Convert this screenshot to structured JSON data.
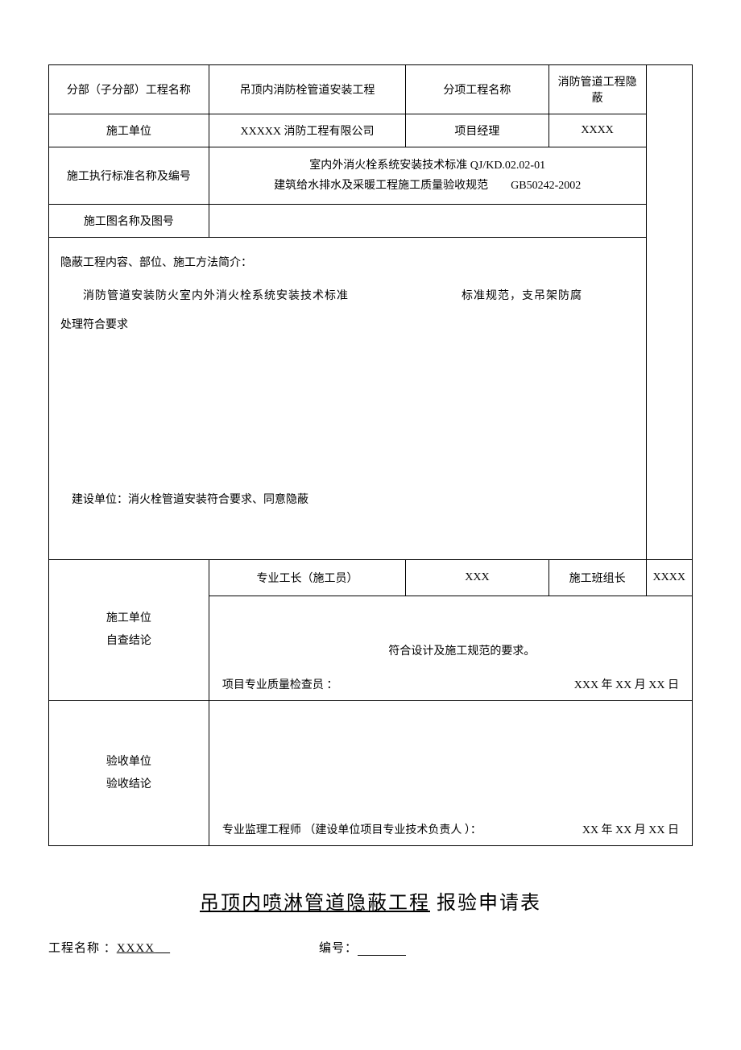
{
  "header": {
    "r1c1": "分部（子分部）工程名称",
    "r1c2": "吊顶内消防栓管道安装工程",
    "r1c3": "分项工程名称",
    "r1c4": "消防管道工程隐蔽",
    "r2c1": "施工单位",
    "r2c2": "XXXXX 消防工程有限公司",
    "r2c3": "项目经理",
    "r2c4": "XXXX",
    "r3c1": "施工执行标准名称及编号",
    "r3c2_line1": "室内外消火栓系统安装技术标准 QJ/KD.02.02-01",
    "r3c2_line2a": "建筑给水排水及采暖工程施工质量验收规范",
    "r3c2_line2b": "GB50242-2002",
    "r4c1": "施工图名称及图号"
  },
  "content": {
    "intro": "隐蔽工程内容、部位、施工方法简介：",
    "body_a": "消防管道安装防火室内外消火栓系统安装技术标准",
    "body_b": "标准规范，支吊架防腐",
    "body_c": "处理符合要求",
    "note": "建设单位：消火栓管道安装符合要求、同意隐蔽"
  },
  "conclusion": {
    "label1_a": "施工单位",
    "label1_b": "自查结论",
    "sub_c1": "专业工长（施工员）",
    "sub_c2": "XXX",
    "sub_c3": "施工班组长",
    "sub_c4": "XXXX",
    "text1": "符合设计及施工规范的要求。",
    "sign1_left": "项目专业质量检查员  ：",
    "sign1_right": "XXX 年 XX 月 XX 日",
    "label2_a": "验收单位",
    "label2_b": "验收结论",
    "sign2_left": "专业监理工程师 （建设单位项目专业技术负责人    ）：",
    "sign2_right": "XX 年 XX 月 XX 日"
  },
  "footer": {
    "title_u": "吊顶内喷淋管道隐蔽工程",
    "title_rest": "  报验申请表",
    "proj_label": "工程名称 ：",
    "proj_value": "XXXX",
    "num_label": "编号："
  }
}
